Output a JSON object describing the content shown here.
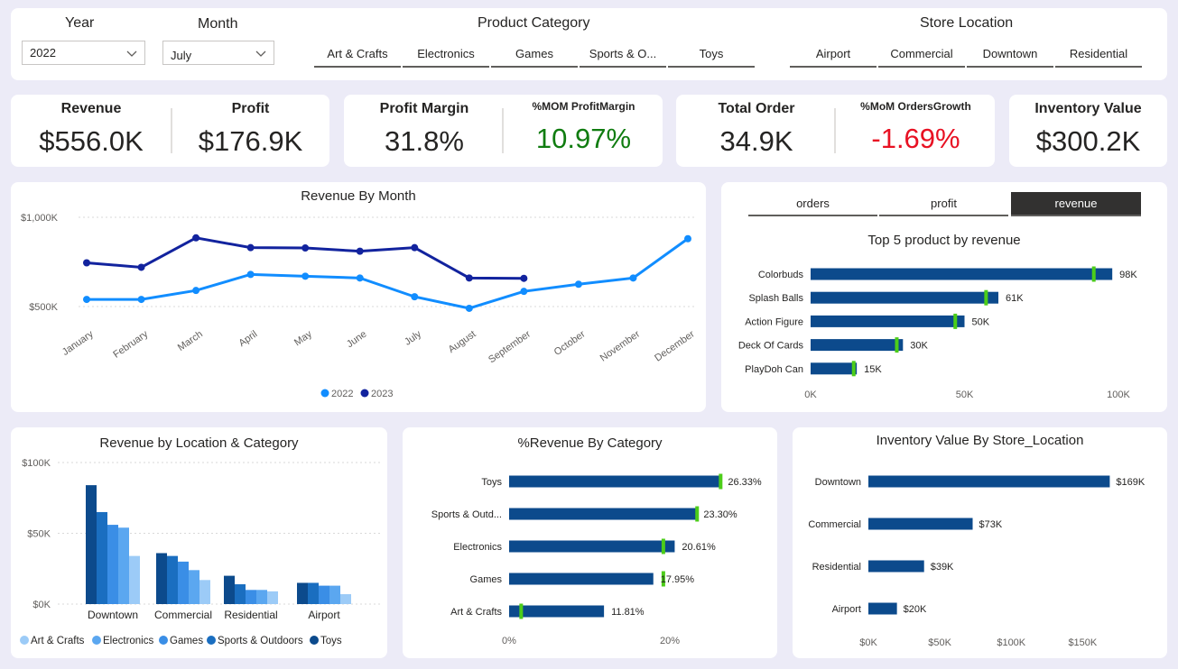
{
  "slicers": {
    "year": {
      "title": "Year",
      "value": "2022"
    },
    "month": {
      "title": "Month",
      "value": "July"
    },
    "category": {
      "title": "Product Category",
      "items": [
        "Art & Crafts",
        "Electronics",
        "Games",
        "Sports & O...",
        "Toys"
      ]
    },
    "location": {
      "title": "Store Location",
      "items": [
        "Airport",
        "Commercial",
        "Downtown",
        "Residential"
      ]
    }
  },
  "kpis": {
    "revenue": {
      "label": "Revenue",
      "value": "$556.0K"
    },
    "profit": {
      "label": "Profit",
      "value": "$176.9K"
    },
    "margin": {
      "label": "Profit Margin",
      "value": "31.8%"
    },
    "mom_margin": {
      "label": "%MOM ProfitMargin",
      "value": "10.97%",
      "color": "#107c10"
    },
    "orders": {
      "label": "Total Order",
      "value": "34.9K"
    },
    "mom_orders": {
      "label": "%MoM OrdersGrowth",
      "value": "-1.69%",
      "color": "#e81123"
    },
    "inventory": {
      "label": "Inventory Value",
      "value": "$300.2K"
    }
  },
  "colors": {
    "navy": "#0c4a8c",
    "dark_navy": "#12239e",
    "blue": "#118dff",
    "green_marker": "#4ccd19"
  },
  "toggles": {
    "items": [
      "orders",
      "profit",
      "revenue"
    ],
    "active": "revenue"
  },
  "chart_data": [
    {
      "id": "revenue_by_month",
      "type": "line",
      "title": "Revenue By Month",
      "categories": [
        "January",
        "February",
        "March",
        "April",
        "May",
        "June",
        "July",
        "August",
        "September",
        "October",
        "November",
        "December"
      ],
      "y_ticks": [
        "$500K",
        "$1,000K"
      ],
      "ylim": [
        300,
        1000
      ],
      "series": [
        {
          "name": "2022",
          "color": "#118dff",
          "values": [
            540,
            540,
            590,
            680,
            670,
            660,
            555,
            490,
            585,
            625,
            660,
            880
          ]
        },
        {
          "name": "2023",
          "color": "#12239e",
          "values": [
            745,
            720,
            885,
            830,
            828,
            810,
            830,
            660,
            658,
            null,
            null,
            null
          ]
        }
      ],
      "legend": [
        "2022",
        "2023"
      ]
    },
    {
      "id": "top5_products",
      "type": "bar",
      "title": "Top 5 product by revenue",
      "categories": [
        "Colorbuds",
        "Splash Balls",
        "Action Figure",
        "Deck Of Cards",
        "PlayDoh Can"
      ],
      "values": [
        98,
        61,
        50,
        30,
        15
      ],
      "markers": [
        92,
        57,
        47,
        28,
        14
      ],
      "labels": [
        "98K",
        "61K",
        "50K",
        "30K",
        "15K"
      ],
      "x_ticks": [
        "0K",
        "50K",
        "100K"
      ],
      "xlim": [
        0,
        100
      ]
    },
    {
      "id": "revenue_by_location_category",
      "type": "bar",
      "title": "Revenue by Location & Category",
      "categories": [
        "Downtown",
        "Commercial",
        "Residential",
        "Airport"
      ],
      "y_ticks": [
        "$0K",
        "$50K",
        "$100K"
      ],
      "ylim": [
        0,
        100
      ],
      "series": [
        {
          "name": "Toys",
          "color": "#0c4a8c",
          "values": [
            84,
            36,
            20,
            15
          ]
        },
        {
          "name": "Sports & Outdoors",
          "color": "#1a6ec0",
          "values": [
            65,
            34,
            14,
            15
          ]
        },
        {
          "name": "Games",
          "color": "#3a8ee6",
          "values": [
            56,
            30,
            10,
            13
          ]
        },
        {
          "name": "Electronics",
          "color": "#5ba7f0",
          "values": [
            54,
            24,
            10,
            13
          ]
        },
        {
          "name": "Art & Crafts",
          "color": "#9ccbf7",
          "values": [
            34,
            17,
            9,
            7
          ]
        }
      ],
      "legend": [
        "Art & Crafts",
        "Electronics",
        "Games",
        "Sports & Outdoors",
        "Toys"
      ]
    },
    {
      "id": "pct_revenue_by_category",
      "type": "bar",
      "title": "%Revenue By Category",
      "categories": [
        "Toys",
        "Sports & Outd...",
        "Electronics",
        "Games",
        "Art & Crafts"
      ],
      "values": [
        26.33,
        23.3,
        20.61,
        17.95,
        11.81
      ],
      "markers": [
        26.33,
        23.4,
        19.2,
        19.2,
        1.5
      ],
      "labels": [
        "26.33%",
        "23.30%",
        "20.61%",
        "17.95%",
        "11.81%"
      ],
      "x_ticks": [
        "0%",
        "20%"
      ],
      "xlim": [
        0,
        30
      ]
    },
    {
      "id": "inventory_by_location",
      "type": "bar",
      "title": "Inventory Value By Store_Location",
      "categories": [
        "Downtown",
        "Commercial",
        "Residential",
        "Airport"
      ],
      "values": [
        169,
        73,
        39,
        20
      ],
      "labels": [
        "$169K",
        "$73K",
        "$39K",
        "$20K"
      ],
      "x_ticks": [
        "$0K",
        "$50K",
        "$100K",
        "$150K"
      ],
      "xlim": [
        0,
        170
      ]
    }
  ]
}
